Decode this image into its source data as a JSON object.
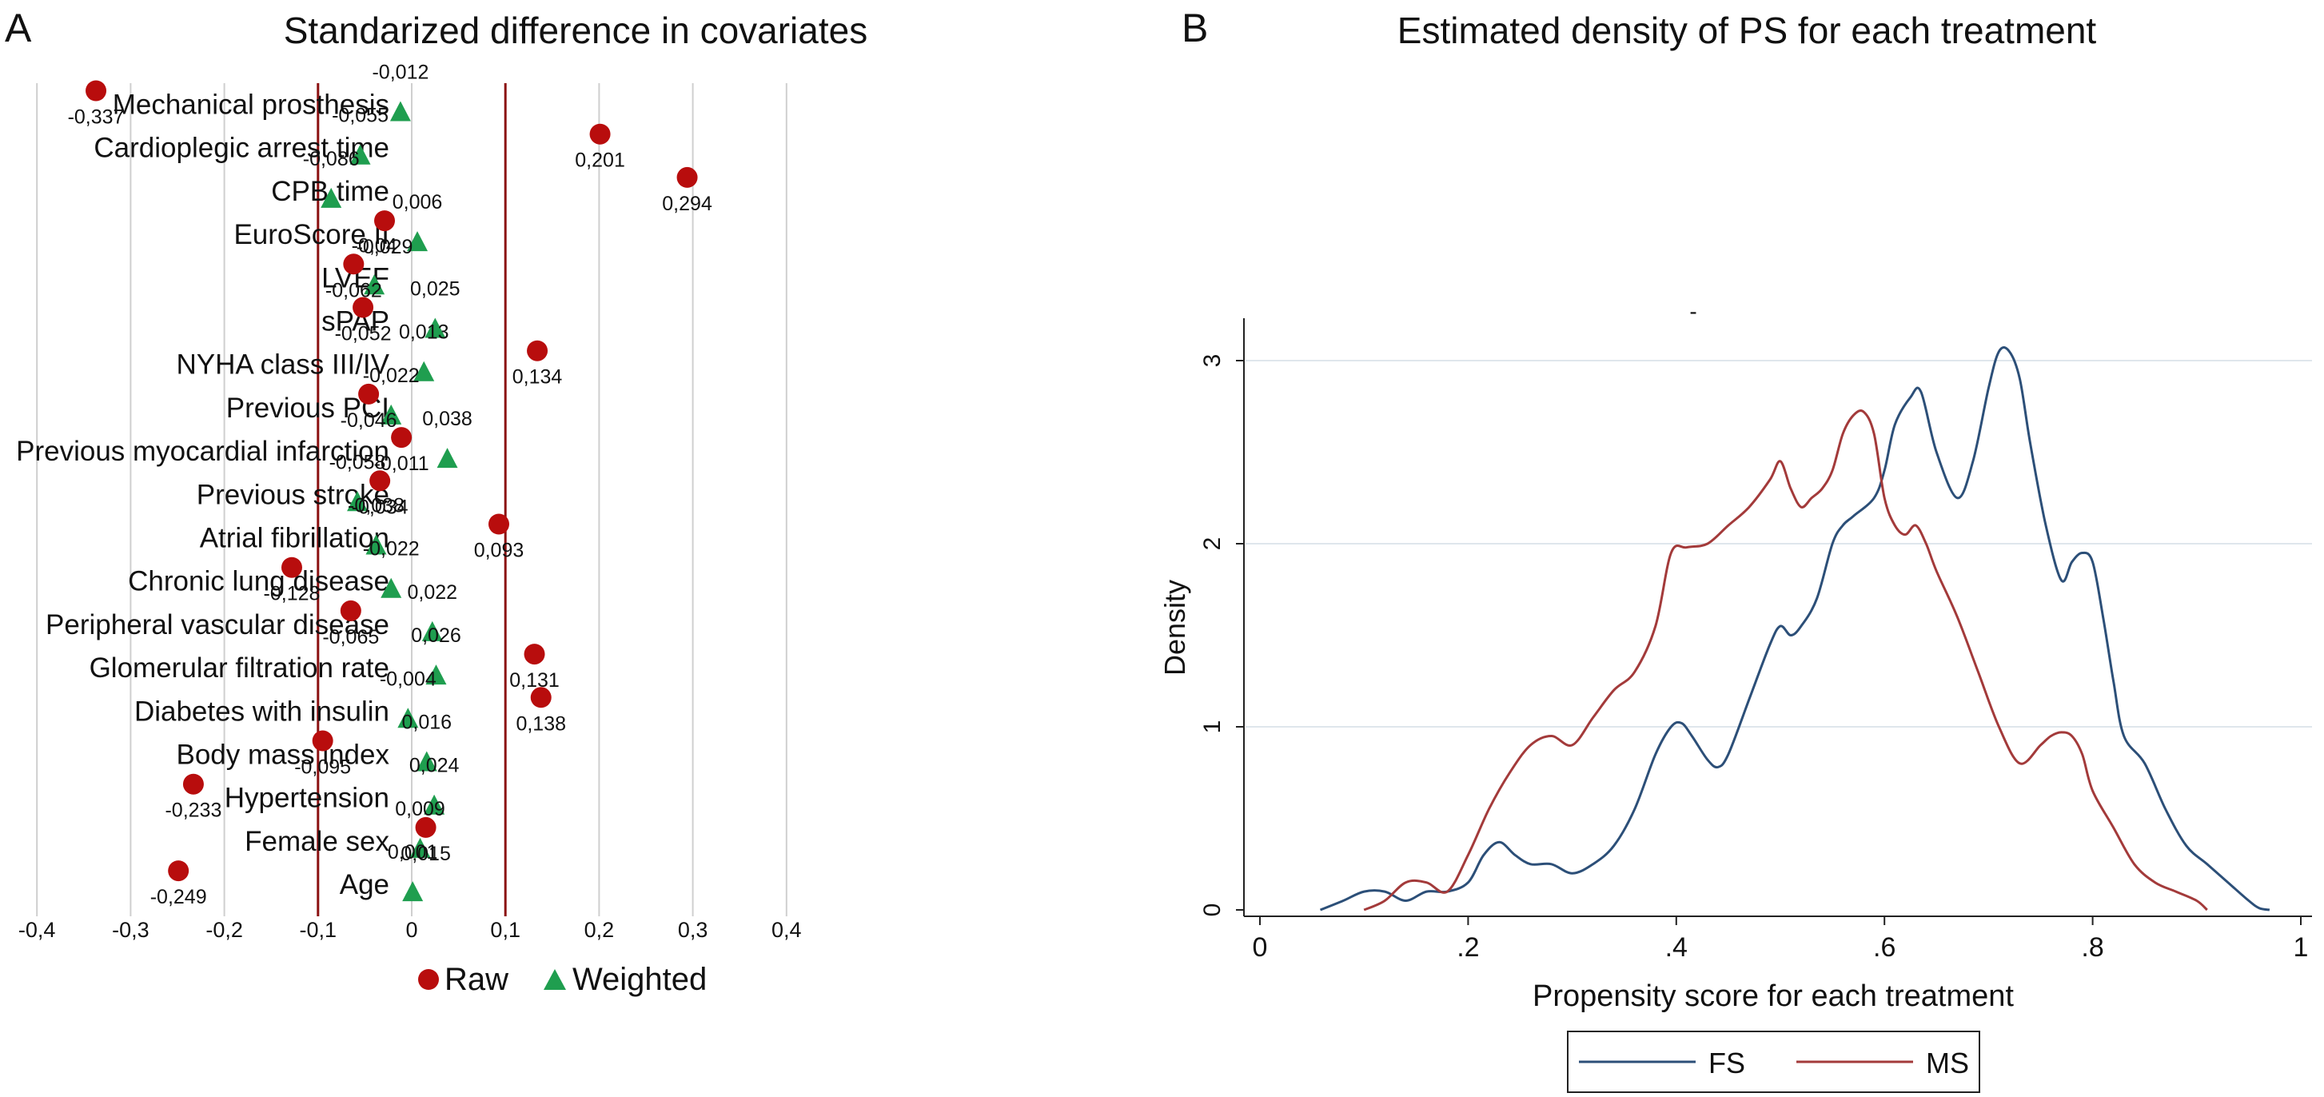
{
  "panel_a_letter": "A",
  "panel_b_letter": "B",
  "chart_data": [
    {
      "type": "scatter",
      "title": "Standarized difference in covariates",
      "xlim": [
        -0.4,
        0.4
      ],
      "xticks": [
        "-0,4",
        "-0,3",
        "-0,2",
        "-0,1",
        "0",
        "0,1",
        "0,2",
        "0,3",
        "0,4"
      ],
      "reference_lines": [
        -0.1,
        0.1
      ],
      "colors": {
        "raw": "#b80d0d",
        "weighted": "#1f9e4f",
        "reference": "#8b1111",
        "grid": "#cfcfcf"
      },
      "covariates": [
        "Mechanical prosthesis",
        "Cardioplegic arrest time",
        "CPB time",
        "EuroScore II",
        "LVEF",
        "sPAP",
        "NYHA class III/IV",
        "Previous PCI",
        "Previous myocardial infarction",
        "Previous stroke",
        "Atrial fibrillation",
        "Chronic lung disease",
        "Peripheral vascular disease",
        "Glomerular filtration rate",
        "Diabetes with insulin",
        "Body mass index",
        "Hypertension",
        "Female sex",
        "Age"
      ],
      "raw": [
        -0.337,
        0.201,
        0.294,
        -0.029,
        -0.062,
        -0.052,
        0.134,
        -0.046,
        -0.011,
        -0.034,
        0.093,
        -0.128,
        -0.065,
        0.131,
        0.138,
        -0.095,
        -0.233,
        0.015,
        -0.249
      ],
      "weighted": [
        -0.012,
        -0.055,
        -0.086,
        0.006,
        -0.04,
        0.025,
        0.013,
        -0.022,
        0.038,
        -0.058,
        -0.038,
        -0.022,
        0.022,
        0.026,
        -0.004,
        0.016,
        0.024,
        0.009,
        0.001
      ],
      "raw_labels": [
        "-0,337",
        "0,201",
        "0,294",
        "-0,029",
        "-0,062",
        "-0,052",
        "0,134",
        "-0,046",
        "-0,011",
        "-0,034",
        "0,093",
        "-0,128",
        "-0,065",
        "0,131",
        "0,138",
        "-0,095",
        "-0,233",
        "0,015",
        "-0,249"
      ],
      "weighted_labels": [
        "-0,012",
        "-0,055",
        "-0,086",
        "0,006",
        "-0,04",
        "0,025",
        "0,013",
        "-0,022",
        "0,038",
        "-0,058",
        "-0,038",
        "-0,022",
        "0,022",
        "0,026",
        "-0,004",
        "0,016",
        "0,024",
        "0,009",
        "0,001"
      ],
      "legend": [
        "Raw",
        "Weighted"
      ],
      "legend_position": "bottom"
    },
    {
      "type": "line",
      "title": "Estimated density of PS for each treatment",
      "subtitle": "-",
      "xlabel": "Propensity score for each treatment",
      "ylabel": "Density",
      "xlim": [
        0,
        1
      ],
      "ylim": [
        0,
        3.2
      ],
      "xticks": [
        {
          "value": 0,
          "label": "0"
        },
        {
          "value": 0.2,
          "label": ".2"
        },
        {
          "value": 0.4,
          "label": ".4"
        },
        {
          "value": 0.6,
          "label": ".6"
        },
        {
          "value": 0.8,
          "label": ".8"
        },
        {
          "value": 1,
          "label": "1"
        }
      ],
      "yticks": [
        {
          "value": 0,
          "label": "0"
        },
        {
          "value": 1,
          "label": "1"
        },
        {
          "value": 2,
          "label": "2"
        },
        {
          "value": 3,
          "label": "3"
        }
      ],
      "grid": true,
      "legend_position": "bottom",
      "series": [
        {
          "name": "FS",
          "color": "#2c4f78",
          "x": [
            0.058,
            0.08,
            0.1,
            0.12,
            0.14,
            0.16,
            0.18,
            0.2,
            0.215,
            0.23,
            0.245,
            0.26,
            0.28,
            0.3,
            0.32,
            0.34,
            0.36,
            0.38,
            0.395,
            0.405,
            0.415,
            0.43,
            0.44,
            0.45,
            0.47,
            0.49,
            0.5,
            0.51,
            0.52,
            0.535,
            0.55,
            0.56,
            0.57,
            0.59,
            0.6,
            0.61,
            0.625,
            0.635,
            0.65,
            0.67,
            0.685,
            0.7,
            0.71,
            0.72,
            0.73,
            0.74,
            0.755,
            0.77,
            0.78,
            0.79,
            0.8,
            0.81,
            0.82,
            0.83,
            0.85,
            0.87,
            0.89,
            0.91,
            0.93,
            0.95,
            0.96,
            0.97
          ],
          "y": [
            0.0,
            0.05,
            0.1,
            0.1,
            0.05,
            0.1,
            0.1,
            0.15,
            0.3,
            0.37,
            0.3,
            0.25,
            0.25,
            0.2,
            0.25,
            0.35,
            0.55,
            0.85,
            1.0,
            1.02,
            0.95,
            0.82,
            0.78,
            0.85,
            1.15,
            1.45,
            1.55,
            1.5,
            1.55,
            1.7,
            2.0,
            2.1,
            2.15,
            2.25,
            2.4,
            2.65,
            2.8,
            2.83,
            2.5,
            2.25,
            2.45,
            2.85,
            3.05,
            3.05,
            2.9,
            2.55,
            2.1,
            1.8,
            1.9,
            1.95,
            1.9,
            1.6,
            1.25,
            0.95,
            0.8,
            0.55,
            0.35,
            0.25,
            0.15,
            0.05,
            0.01,
            0.0
          ]
        },
        {
          "name": "MS",
          "color": "#a33a3a",
          "x": [
            0.1,
            0.12,
            0.14,
            0.16,
            0.18,
            0.2,
            0.22,
            0.24,
            0.26,
            0.28,
            0.3,
            0.32,
            0.34,
            0.36,
            0.38,
            0.395,
            0.41,
            0.43,
            0.45,
            0.47,
            0.49,
            0.5,
            0.51,
            0.52,
            0.53,
            0.54,
            0.55,
            0.56,
            0.57,
            0.58,
            0.59,
            0.6,
            0.61,
            0.62,
            0.63,
            0.64,
            0.65,
            0.67,
            0.69,
            0.71,
            0.73,
            0.75,
            0.76,
            0.77,
            0.78,
            0.79,
            0.8,
            0.82,
            0.84,
            0.86,
            0.88,
            0.9,
            0.91
          ],
          "y": [
            0.0,
            0.05,
            0.15,
            0.15,
            0.1,
            0.3,
            0.55,
            0.75,
            0.9,
            0.95,
            0.9,
            1.05,
            1.2,
            1.3,
            1.55,
            1.95,
            1.98,
            2.0,
            2.1,
            2.2,
            2.35,
            2.45,
            2.3,
            2.2,
            2.25,
            2.3,
            2.4,
            2.6,
            2.7,
            2.72,
            2.6,
            2.25,
            2.1,
            2.05,
            2.1,
            2.0,
            1.85,
            1.6,
            1.3,
            1.0,
            0.8,
            0.9,
            0.95,
            0.97,
            0.95,
            0.85,
            0.65,
            0.45,
            0.25,
            0.15,
            0.1,
            0.05,
            0.0
          ]
        }
      ]
    }
  ]
}
